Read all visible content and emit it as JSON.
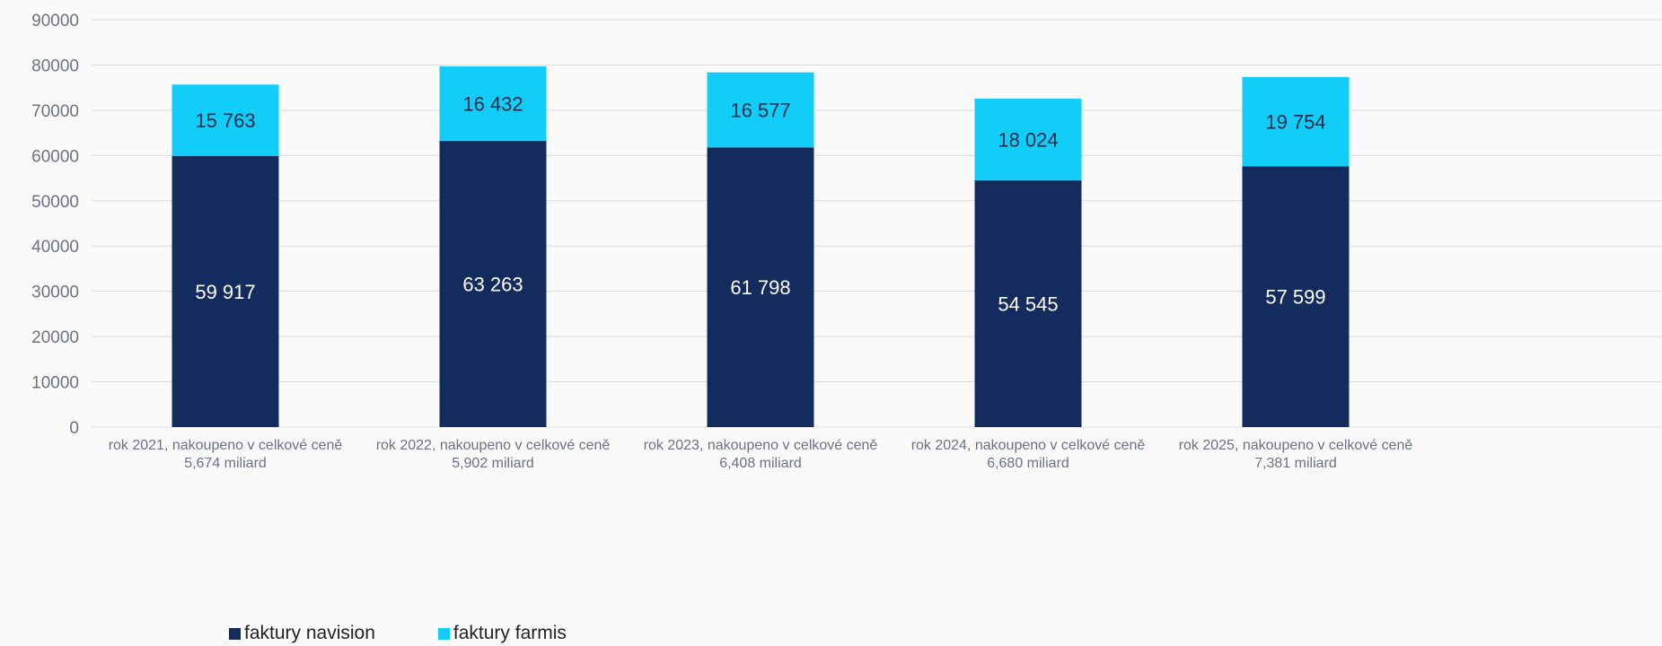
{
  "chart_data": {
    "type": "bar",
    "stacked": true,
    "categories": [
      [
        "rok 2021, nakoupeno v celkové ceně",
        "5,674 miliard"
      ],
      [
        "rok 2022, nakoupeno v celkové ceně",
        "5,902 miliard"
      ],
      [
        "rok 2023, nakoupeno v celkové ceně",
        "6,408 miliard"
      ],
      [
        "rok 2024, nakoupeno v celkové ceně",
        "6,680 miliard"
      ],
      [
        "rok 2025, nakoupeno v celkové ceně",
        "7,381 miliard"
      ]
    ],
    "series": [
      {
        "name": "faktury navision",
        "color": "#142b5e",
        "label_color": "#ffffff",
        "values": [
          59917,
          63263,
          61798,
          54545,
          57599
        ],
        "labels": [
          "59 917",
          "63 263",
          "61 798",
          "54 545",
          "57 599"
        ]
      },
      {
        "name": "faktury farmis",
        "color": "#12cdf8",
        "label_color": "#1a2a4a",
        "values": [
          15763,
          16432,
          16577,
          18024,
          19754
        ],
        "labels": [
          "15 763",
          "16 432",
          "16 577",
          "18 024",
          "19 754"
        ]
      }
    ],
    "ylim": [
      0,
      90000
    ],
    "yticks": [
      0,
      10000,
      20000,
      30000,
      40000,
      50000,
      60000,
      70000,
      80000,
      90000
    ],
    "grid": true,
    "legend_position": "bottom-left",
    "title": "",
    "xlabel": "",
    "ylabel": ""
  },
  "colors": {
    "background": "#fafafa",
    "grid": "#d9d9d9",
    "tick_text": "#6b7280"
  }
}
